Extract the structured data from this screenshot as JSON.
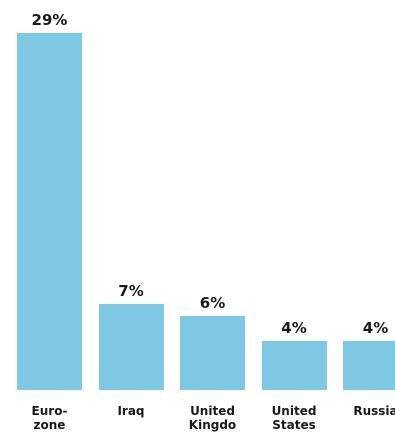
{
  "chart_data": {
    "type": "bar",
    "categories": [
      "Euro-zone",
      "Iraq",
      "United Kingdom",
      "United States",
      "Russia"
    ],
    "values": [
      29,
      7,
      6,
      4,
      4
    ],
    "value_labels": [
      "29%",
      "7%",
      "6%",
      "4%",
      "4%"
    ],
    "color": "#7ec8e3"
  }
}
